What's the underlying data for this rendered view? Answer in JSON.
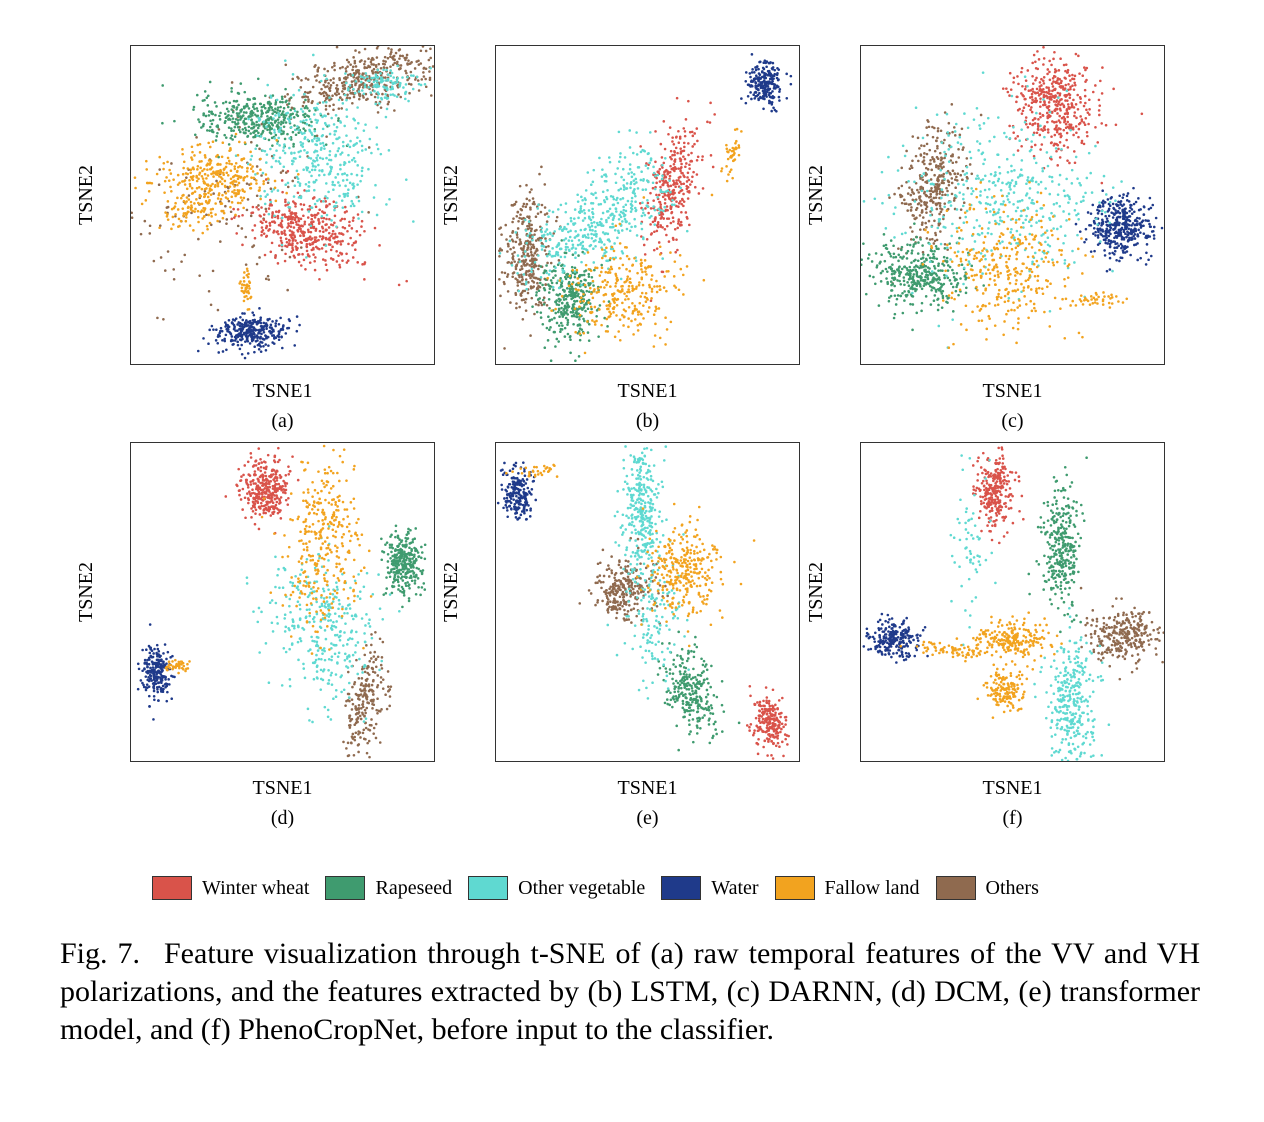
{
  "figure": {
    "caption_label": "Fig. 7.",
    "caption_text": "Feature visualization through t-SNE of (a) raw temporal features of the VV and VH polarizations, and the features extracted by (b) LSTM, (c) DARNN, (d) DCM, (e) transformer model, and (f) PhenoCropNet, before input to the classifier."
  },
  "legend": [
    {
      "name": "Winter wheat",
      "color": "#d9534a"
    },
    {
      "name": "Rapeseed",
      "color": "#3f9b6f"
    },
    {
      "name": "Other vegetable",
      "color": "#5fd9d1"
    },
    {
      "name": "Water",
      "color": "#1f3a8a"
    },
    {
      "name": "Fallow land",
      "color": "#f2a31f"
    },
    {
      "name": "Others",
      "color": "#8f6a4f"
    }
  ],
  "chart_data": [
    {
      "type": "scatter",
      "subplot_label": "(a)",
      "xlabel": "TSNE1",
      "ylabel": "TSNE2",
      "xlim": [
        0,
        100
      ],
      "ylim": [
        0,
        100
      ],
      "grid": false,
      "series": [
        {
          "name": "Winter wheat",
          "clusters": [
            {
              "cx": 58,
              "cy": 42,
              "sx": 10,
              "sy": 5,
              "n": 420,
              "rot": -15
            }
          ]
        },
        {
          "name": "Rapeseed",
          "clusters": [
            {
              "cx": 42,
              "cy": 77,
              "sx": 10,
              "sy": 4,
              "n": 380
            }
          ]
        },
        {
          "name": "Other vegetable",
          "clusters": [
            {
              "cx": 62,
              "cy": 66,
              "sx": 11,
              "sy": 10,
              "n": 380,
              "rot": -35
            },
            {
              "cx": 84,
              "cy": 88,
              "sx": 7,
              "sy": 3,
              "n": 120
            }
          ]
        },
        {
          "name": "Water",
          "clusters": [
            {
              "cx": 40,
              "cy": 10,
              "sx": 6,
              "sy": 2.5,
              "n": 300
            }
          ]
        },
        {
          "name": "Fallow land",
          "clusters": [
            {
              "cx": 28,
              "cy": 58,
              "sx": 10,
              "sy": 5,
              "n": 300
            },
            {
              "cx": 38,
              "cy": 24,
              "sx": 1,
              "sy": 3,
              "n": 40
            },
            {
              "cx": 20,
              "cy": 48,
              "sx": 6,
              "sy": 3,
              "n": 80
            }
          ]
        },
        {
          "name": "Others",
          "clusters": [
            {
              "cx": 78,
              "cy": 90,
              "sx": 13,
              "sy": 4,
              "n": 420,
              "rot": 15
            },
            {
              "cx": 30,
              "cy": 50,
              "sx": 18,
              "sy": 16,
              "n": 120
            }
          ]
        }
      ]
    },
    {
      "type": "scatter",
      "subplot_label": "(b)",
      "xlabel": "TSNE1",
      "ylabel": "TSNE2",
      "xlim": [
        0,
        100
      ],
      "ylim": [
        0,
        100
      ],
      "grid": false,
      "series": [
        {
          "name": "Winter wheat",
          "clusters": [
            {
              "cx": 58,
              "cy": 56,
              "sx": 4,
              "sy": 10,
              "n": 320,
              "rot": -15
            }
          ]
        },
        {
          "name": "Rapeseed",
          "clusters": [
            {
              "cx": 24,
              "cy": 20,
              "sx": 5,
              "sy": 6,
              "n": 330
            }
          ]
        },
        {
          "name": "Other vegetable",
          "clusters": [
            {
              "cx": 30,
              "cy": 42,
              "sx": 13,
              "sy": 6,
              "n": 380,
              "rot": 25
            },
            {
              "cx": 45,
              "cy": 58,
              "sx": 6,
              "sy": 6,
              "n": 90
            }
          ]
        },
        {
          "name": "Water",
          "clusters": [
            {
              "cx": 89,
              "cy": 88,
              "sx": 3,
              "sy": 3.5,
              "n": 230
            }
          ]
        },
        {
          "name": "Fallow land",
          "clusters": [
            {
              "cx": 42,
              "cy": 24,
              "sx": 9,
              "sy": 7,
              "n": 280
            },
            {
              "cx": 78,
              "cy": 66,
              "sx": 1.2,
              "sy": 5,
              "n": 40,
              "rot": -20
            }
          ]
        },
        {
          "name": "Others",
          "clusters": [
            {
              "cx": 10,
              "cy": 35,
              "sx": 4,
              "sy": 10,
              "n": 330
            }
          ]
        }
      ]
    },
    {
      "type": "scatter",
      "subplot_label": "(c)",
      "xlabel": "TSNE1",
      "ylabel": "TSNE2",
      "xlim": [
        0,
        100
      ],
      "ylim": [
        0,
        100
      ],
      "grid": false,
      "series": [
        {
          "name": "Winter wheat",
          "clusters": [
            {
              "cx": 64,
              "cy": 82,
              "sx": 7,
              "sy": 8,
              "n": 430
            }
          ]
        },
        {
          "name": "Rapeseed",
          "clusters": [
            {
              "cx": 18,
              "cy": 28,
              "sx": 8,
              "sy": 5,
              "n": 380
            }
          ]
        },
        {
          "name": "Other vegetable",
          "clusters": [
            {
              "cx": 48,
              "cy": 52,
              "sx": 16,
              "sy": 14,
              "n": 420
            }
          ]
        },
        {
          "name": "Water",
          "clusters": [
            {
              "cx": 86,
              "cy": 43,
              "sx": 5,
              "sy": 5,
              "n": 380
            }
          ]
        },
        {
          "name": "Fallow land",
          "clusters": [
            {
              "cx": 48,
              "cy": 30,
              "sx": 11,
              "sy": 10,
              "n": 320
            },
            {
              "cx": 78,
              "cy": 20,
              "sx": 5,
              "sy": 1,
              "n": 40
            }
          ]
        },
        {
          "name": "Others",
          "clusters": [
            {
              "cx": 24,
              "cy": 56,
              "sx": 5,
              "sy": 10,
              "n": 330,
              "rot": -15
            }
          ]
        }
      ]
    },
    {
      "type": "scatter",
      "subplot_label": "(d)",
      "xlabel": "TSNE1",
      "ylabel": "TSNE2",
      "xlim": [
        0,
        100
      ],
      "ylim": [
        0,
        100
      ],
      "grid": false,
      "series": [
        {
          "name": "Winter wheat",
          "clusters": [
            {
              "cx": 44,
              "cy": 85,
              "sx": 4,
              "sy": 5,
              "n": 330
            }
          ]
        },
        {
          "name": "Rapeseed",
          "clusters": [
            {
              "cx": 90,
              "cy": 62,
              "sx": 3,
              "sy": 5,
              "n": 280
            }
          ]
        },
        {
          "name": "Other vegetable",
          "clusters": [
            {
              "cx": 64,
              "cy": 42,
              "sx": 9,
              "sy": 12,
              "n": 330,
              "rot": 20
            }
          ]
        },
        {
          "name": "Water",
          "clusters": [
            {
              "cx": 8,
              "cy": 28,
              "sx": 2.5,
              "sy": 4,
              "n": 230
            }
          ]
        },
        {
          "name": "Fallow land",
          "clusters": [
            {
              "cx": 64,
              "cy": 70,
              "sx": 6,
              "sy": 14,
              "n": 330,
              "rot": -8
            },
            {
              "cx": 15,
              "cy": 30,
              "sx": 2,
              "sy": 1.2,
              "n": 40
            }
          ]
        },
        {
          "name": "Others",
          "clusters": [
            {
              "cx": 77,
              "cy": 18,
              "sx": 3,
              "sy": 9,
              "n": 220,
              "rot": -10
            }
          ]
        }
      ]
    },
    {
      "type": "scatter",
      "subplot_label": "(e)",
      "xlabel": "TSNE1",
      "ylabel": "TSNE2",
      "xlim": [
        0,
        100
      ],
      "ylim": [
        0,
        100
      ],
      "grid": false,
      "series": [
        {
          "name": "Winter wheat",
          "clusters": [
            {
              "cx": 90,
              "cy": 12,
              "sx": 2.5,
              "sy": 4.5,
              "n": 220
            }
          ]
        },
        {
          "name": "Rapeseed",
          "clusters": [
            {
              "cx": 64,
              "cy": 22,
              "sx": 4,
              "sy": 7,
              "n": 260,
              "rot": 20
            }
          ]
        },
        {
          "name": "Other vegetable",
          "clusters": [
            {
              "cx": 48,
              "cy": 80,
              "sx": 3,
              "sy": 10,
              "n": 300
            },
            {
              "cx": 52,
              "cy": 45,
              "sx": 5,
              "sy": 11,
              "n": 150
            }
          ]
        },
        {
          "name": "Water",
          "clusters": [
            {
              "cx": 7,
              "cy": 84,
              "sx": 2.5,
              "sy": 4,
              "n": 200
            }
          ]
        },
        {
          "name": "Fallow land",
          "clusters": [
            {
              "cx": 62,
              "cy": 60,
              "sx": 6,
              "sy": 7,
              "n": 300
            },
            {
              "cx": 15,
              "cy": 91,
              "sx": 4,
              "sy": 0.8,
              "n": 30
            }
          ]
        },
        {
          "name": "Others",
          "clusters": [
            {
              "cx": 42,
              "cy": 54,
              "sx": 5,
              "sy": 5,
              "n": 260
            }
          ]
        }
      ]
    },
    {
      "type": "scatter",
      "subplot_label": "(f)",
      "xlabel": "TSNE1",
      "ylabel": "TSNE2",
      "xlim": [
        0,
        100
      ],
      "ylim": [
        0,
        100
      ],
      "grid": false,
      "series": [
        {
          "name": "Winter wheat",
          "clusters": [
            {
              "cx": 44,
              "cy": 85,
              "sx": 3,
              "sy": 6,
              "n": 280
            }
          ]
        },
        {
          "name": "Rapeseed",
          "clusters": [
            {
              "cx": 66,
              "cy": 68,
              "sx": 3,
              "sy": 10,
              "n": 300
            }
          ]
        },
        {
          "name": "Other vegetable",
          "clusters": [
            {
              "cx": 70,
              "cy": 18,
              "sx": 4,
              "sy": 10,
              "n": 320
            },
            {
              "cx": 36,
              "cy": 70,
              "sx": 3,
              "sy": 12,
              "n": 60
            }
          ]
        },
        {
          "name": "Water",
          "clusters": [
            {
              "cx": 11,
              "cy": 38,
              "sx": 4,
              "sy": 3,
              "n": 230
            }
          ]
        },
        {
          "name": "Fallow land",
          "clusters": [
            {
              "cx": 50,
              "cy": 38,
              "sx": 7,
              "sy": 3,
              "n": 220
            },
            {
              "cx": 48,
              "cy": 22,
              "sx": 3,
              "sy": 3,
              "n": 140
            },
            {
              "cx": 28,
              "cy": 35,
              "sx": 7,
              "sy": 1,
              "n": 60,
              "rot": -8
            }
          ]
        },
        {
          "name": "Others",
          "clusters": [
            {
              "cx": 86,
              "cy": 40,
              "sx": 6,
              "sy": 4,
              "n": 280
            }
          ]
        }
      ]
    }
  ]
}
